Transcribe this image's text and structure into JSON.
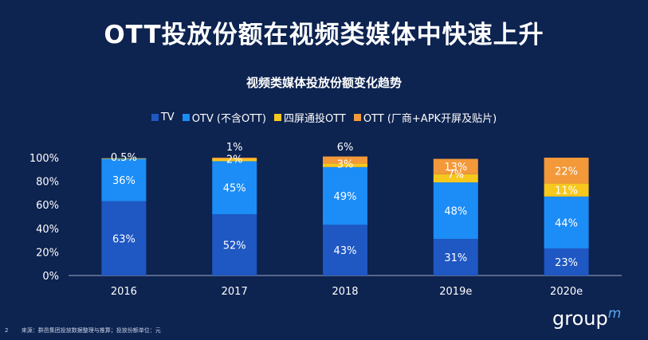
{
  "slide": {
    "title": "OTT投放份额在视频类媒体中快速上升",
    "page_number": "2",
    "source_note": "来源：群邑集团投放数据整理与推算；投放份额单位：元",
    "logo_text": "group",
    "logo_mark": "m"
  },
  "chart_data": {
    "type": "bar",
    "stacked": true,
    "title": "视频类媒体投放份额变化趋势",
    "categories": [
      "2016",
      "2017",
      "2018",
      "2019e",
      "2020e"
    ],
    "series": [
      {
        "name": "TV",
        "color": "#1f57c3",
        "values": [
          63,
          52,
          43,
          31,
          23
        ],
        "labels": [
          "63%",
          "52%",
          "43%",
          "31%",
          "23%"
        ]
      },
      {
        "name": "OTV (不含OTT)",
        "color": "#1c8cf6",
        "values": [
          36,
          45,
          49,
          48,
          44
        ],
        "labels": [
          "36%",
          "45%",
          "49%",
          "48%",
          "44%"
        ]
      },
      {
        "name": "四屏通投OTT",
        "color": "#f7c81e",
        "values": [
          0.5,
          2,
          3,
          7,
          11
        ],
        "labels": [
          "0.5%",
          "2%",
          "3%",
          "7%",
          "11%"
        ]
      },
      {
        "name": "OTT (厂商+APK开屏及贴片)",
        "color": "#f3993a",
        "values": [
          0,
          1,
          6,
          13,
          22
        ],
        "labels": [
          "",
          "1%",
          "6%",
          "13%",
          "22%"
        ]
      }
    ],
    "ylim": [
      0,
      100
    ],
    "yticks": [
      0,
      20,
      40,
      60,
      80,
      100
    ],
    "ytick_labels": [
      "0%",
      "20%",
      "40%",
      "60%",
      "80%",
      "100%"
    ],
    "xlabel": "",
    "ylabel": "",
    "legend": "top-center",
    "grid": false
  }
}
